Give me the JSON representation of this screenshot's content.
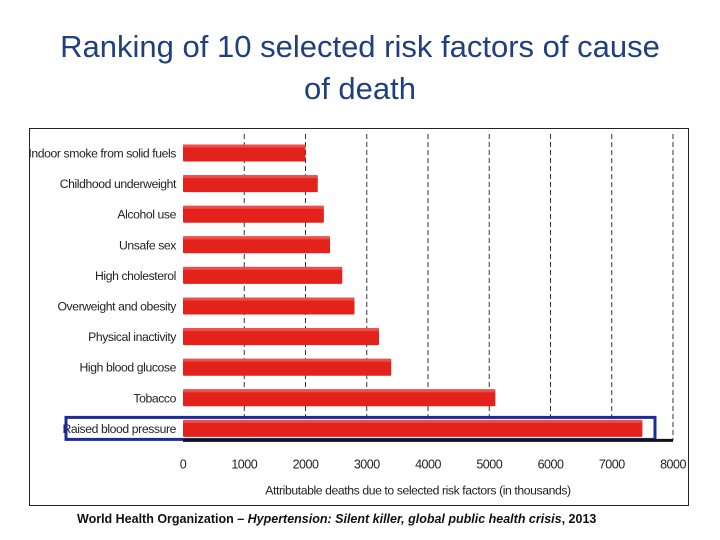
{
  "slide": {
    "title_line1": "Ranking of 10 selected risk factors of cause",
    "title_line2": "of death"
  },
  "source": {
    "org": "World Health Organization – ",
    "work": "Hypertension: Silent killer, global public health crisis",
    "year": ", 2013"
  },
  "chart_data": {
    "type": "bar",
    "orientation": "horizontal",
    "categories": [
      "Indoor smoke from solid fuels",
      "Childhood underweight",
      "Alcohol use",
      "Unsafe sex",
      "High cholesterol",
      "Overweight and obesity",
      "Physical inactivity",
      "High blood glucose",
      "Tobacco",
      "Raised blood pressure"
    ],
    "values": [
      2000,
      2200,
      2300,
      2400,
      2600,
      2800,
      3200,
      3400,
      5100,
      7500
    ],
    "highlighted_category": "Raised blood pressure",
    "xlabel": "Attributable deaths due to selected risk factors (in thousands)",
    "xlim": [
      0,
      8000
    ],
    "xticks": [
      0,
      1000,
      2000,
      3000,
      4000,
      5000,
      6000,
      7000,
      8000
    ],
    "grid": "vertical dashed",
    "colors": {
      "bar": "#e3231b",
      "highlight_box": "#1c2a9a",
      "grid": "#333333"
    }
  }
}
